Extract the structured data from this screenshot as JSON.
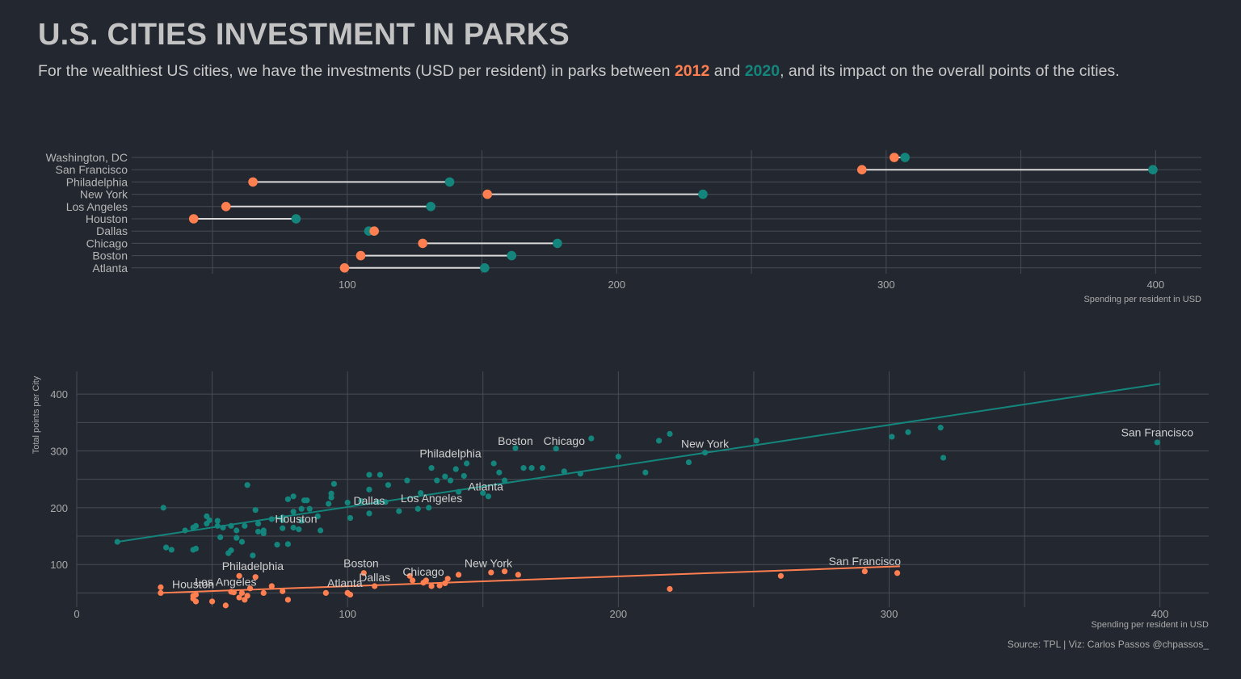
{
  "header": {
    "title": "U.S. CITIES INVESTMENT IN PARKS",
    "subtitle_before": "For the wealthiest US cities, we have the investments (USD per resident) in parks between ",
    "year_a": "2012",
    "subtitle_mid": " and ",
    "year_b": "2020",
    "subtitle_after": ", and its impact on the overall points of the cities."
  },
  "colors": {
    "background": "#23272f",
    "y2012": "#ff7f50",
    "y2020": "#14857c",
    "segment": "#d9d9d9",
    "grid": "#474c56"
  },
  "caption": "Source: TPL |  Viz: Carlos Passos @chpassos_",
  "chart_data": [
    {
      "type": "dumbbell",
      "xlabel": "Spending per resident in USD",
      "xlim": [
        20,
        417
      ],
      "xticks": [
        100,
        200,
        300,
        400
      ],
      "categories": [
        "Washington, DC",
        "San Francisco",
        "Philadelphia",
        "New York",
        "Los Angeles",
        "Houston",
        "Dallas",
        "Chicago",
        "Boston",
        "Atlanta"
      ],
      "series": [
        {
          "name": "2012",
          "values": [
            303,
            291,
            65,
            152,
            55,
            43,
            110,
            128,
            105,
            99
          ]
        },
        {
          "name": "2020",
          "values": [
            307,
            399,
            138,
            232,
            131,
            81,
            108,
            178,
            161,
            151
          ]
        }
      ],
      "grid": true
    },
    {
      "type": "scatter",
      "xlabel": "Spending per resident in USD",
      "ylabel": "Total points per City",
      "xlim": [
        0,
        418
      ],
      "ylim": [
        25,
        440
      ],
      "xticks": [
        0,
        100,
        200,
        300,
        400
      ],
      "yticks": [
        100,
        200,
        300,
        400
      ],
      "grid": true,
      "series": [
        {
          "name": "2020",
          "points": [
            [
              15,
              140
            ],
            [
              32,
              200
            ],
            [
              33,
              130
            ],
            [
              35,
              126
            ],
            [
              40,
              160
            ],
            [
              43,
              126
            ],
            [
              43,
              165
            ],
            [
              44,
              128
            ],
            [
              44,
              168
            ],
            [
              48,
              172
            ],
            [
              48,
              185
            ],
            [
              49,
              178
            ],
            [
              52,
              168
            ],
            [
              52,
              177
            ],
            [
              53,
              148
            ],
            [
              54,
              165
            ],
            [
              56,
              120
            ],
            [
              57,
              125
            ],
            [
              57,
              168
            ],
            [
              59,
              160
            ],
            [
              59,
              147
            ],
            [
              61,
              140
            ],
            [
              62,
              168
            ],
            [
              63,
              240
            ],
            [
              65,
              116
            ],
            [
              66,
              196
            ],
            [
              67,
              158
            ],
            [
              67,
              172
            ],
            [
              69,
              160
            ],
            [
              69,
              155
            ],
            [
              72,
              180
            ],
            [
              74,
              135
            ],
            [
              76,
              183
            ],
            [
              76,
              178
            ],
            [
              76,
              164
            ],
            [
              78,
              136
            ],
            [
              78,
              215
            ],
            [
              80,
              220
            ],
            [
              80,
              165
            ],
            [
              80,
              193
            ],
            [
              82,
              162
            ],
            [
              83,
              198
            ],
            [
              83,
              177
            ],
            [
              84,
              213
            ],
            [
              85,
              213
            ],
            [
              86,
              198
            ],
            [
              89,
              185
            ],
            [
              90,
              160
            ],
            [
              93,
              207
            ],
            [
              94,
              218
            ],
            [
              94,
              225
            ],
            [
              95,
              242
            ],
            [
              100,
              209
            ],
            [
              101,
              182
            ],
            [
              105,
              212
            ],
            [
              108,
              258
            ],
            [
              108,
              232
            ],
            [
              108,
              190
            ],
            [
              111,
              210
            ],
            [
              112,
              258
            ],
            [
              114,
              210
            ],
            [
              115,
              240
            ],
            [
              119,
              194
            ],
            [
              122,
              248
            ],
            [
              126,
              198
            ],
            [
              127,
              226
            ],
            [
              130,
              200
            ],
            [
              131,
              270
            ],
            [
              133,
              248
            ],
            [
              136,
              255
            ],
            [
              138,
              248
            ],
            [
              140,
              268
            ],
            [
              141,
              228
            ],
            [
              143,
              256
            ],
            [
              144,
              278
            ],
            [
              150,
              226
            ],
            [
              152,
              220
            ],
            [
              154,
              278
            ],
            [
              156,
              262
            ],
            [
              158,
              248
            ],
            [
              162,
              305
            ],
            [
              165,
              270
            ],
            [
              168,
              270
            ],
            [
              172,
              270
            ],
            [
              177,
              304
            ],
            [
              180,
              264
            ],
            [
              186,
              260
            ],
            [
              190,
              322
            ],
            [
              200,
              290
            ],
            [
              210,
              262
            ],
            [
              215,
              318
            ],
            [
              219,
              330
            ],
            [
              226,
              280
            ],
            [
              232,
              297
            ],
            [
              251,
              318
            ],
            [
              301,
              325
            ],
            [
              307,
              333
            ],
            [
              319,
              341
            ],
            [
              320,
              288
            ],
            [
              399,
              315
            ]
          ],
          "trend": [
            [
              15,
              140
            ],
            [
              400,
              418
            ]
          ]
        },
        {
          "name": "2012",
          "points": [
            [
              31,
              60
            ],
            [
              31,
              50
            ],
            [
              43,
              40
            ],
            [
              43,
              45
            ],
            [
              44,
              35
            ],
            [
              44,
              47
            ],
            [
              50,
              35
            ],
            [
              55,
              28
            ],
            [
              57,
              52
            ],
            [
              58,
              51
            ],
            [
              60,
              42
            ],
            [
              60,
              80
            ],
            [
              61,
              50
            ],
            [
              62,
              38
            ],
            [
              63,
              45
            ],
            [
              64,
              58
            ],
            [
              66,
              78
            ],
            [
              69,
              50
            ],
            [
              72,
              62
            ],
            [
              76,
              53
            ],
            [
              78,
              38
            ],
            [
              92,
              50
            ],
            [
              100,
              50
            ],
            [
              101,
              47
            ],
            [
              106,
              85
            ],
            [
              110,
              62
            ],
            [
              123,
              80
            ],
            [
              124,
              72
            ],
            [
              128,
              68
            ],
            [
              129,
              72
            ],
            [
              131,
              62
            ],
            [
              134,
              63
            ],
            [
              136,
              67
            ],
            [
              137,
              75
            ],
            [
              141,
              82
            ],
            [
              153,
              86
            ],
            [
              158,
              88
            ],
            [
              163,
              82
            ],
            [
              219,
              57
            ],
            [
              260,
              80
            ],
            [
              291,
              88
            ],
            [
              303,
              85
            ]
          ],
          "trend": [
            [
              31,
              50
            ],
            [
              304,
              97
            ]
          ]
        }
      ],
      "annotations": [
        {
          "text": "San Francisco",
          "x": 399,
          "y": 320,
          "series": "2020"
        },
        {
          "text": "Boston",
          "x": 162,
          "y": 305,
          "series": "2020"
        },
        {
          "text": "Chicago",
          "x": 180,
          "y": 305,
          "series": "2020"
        },
        {
          "text": "New York",
          "x": 232,
          "y": 300,
          "series": "2020"
        },
        {
          "text": "Philadelphia",
          "x": 138,
          "y": 283,
          "series": "2020"
        },
        {
          "text": "Atlanta",
          "x": 151,
          "y": 225,
          "series": "2020"
        },
        {
          "text": "Los Angeles",
          "x": 131,
          "y": 204,
          "series": "2020"
        },
        {
          "text": "Dallas",
          "x": 108,
          "y": 200,
          "series": "2020"
        },
        {
          "text": "Houston",
          "x": 81,
          "y": 168,
          "series": "2020"
        },
        {
          "text": "San Francisco",
          "x": 291,
          "y": 93,
          "series": "2012"
        },
        {
          "text": "New York",
          "x": 152,
          "y": 90,
          "series": "2012"
        },
        {
          "text": "Boston",
          "x": 105,
          "y": 90,
          "series": "2012"
        },
        {
          "text": "Chicago",
          "x": 128,
          "y": 75,
          "series": "2012"
        },
        {
          "text": "Philadelphia",
          "x": 65,
          "y": 85,
          "series": "2012"
        },
        {
          "text": "Dallas",
          "x": 110,
          "y": 65,
          "series": "2012"
        },
        {
          "text": "Los Angeles",
          "x": 55,
          "y": 57,
          "series": "2012"
        },
        {
          "text": "Atlanta",
          "x": 99,
          "y": 55,
          "series": "2012"
        },
        {
          "text": "Houston",
          "x": 43,
          "y": 53,
          "series": "2012"
        }
      ]
    }
  ]
}
